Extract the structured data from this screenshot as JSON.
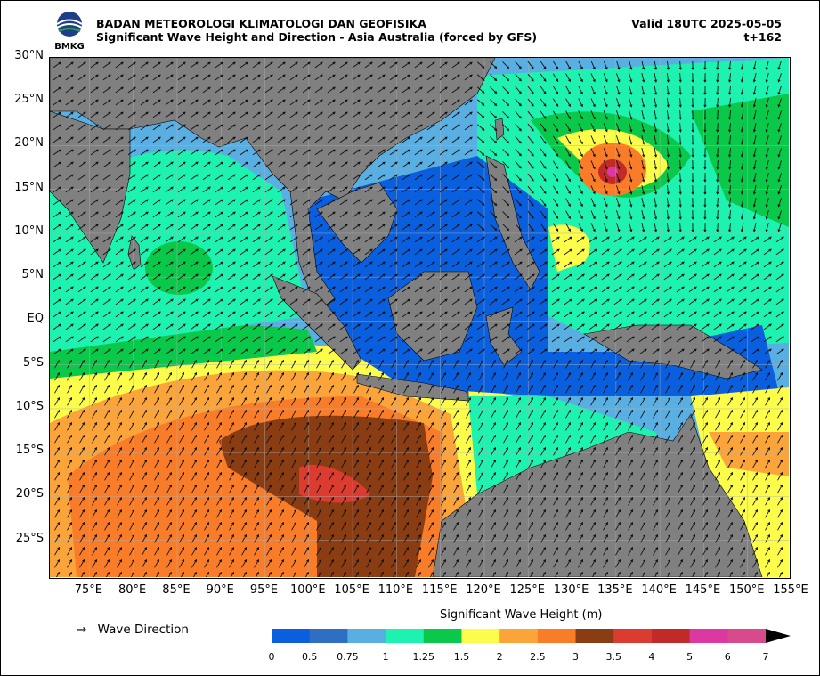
{
  "header": {
    "agency": "BADAN METEOROLOGI KLIMATOLOGI DAN GEOFISIKA",
    "product": "Significant Wave Height and Direction - Asia Australia (forced by GFS)",
    "valid": "Valid 18UTC 2025-05-05",
    "lead": "t+162",
    "logo_text": "BMKG"
  },
  "map": {
    "lat_labels": [
      "30°N",
      "25°N",
      "20°N",
      "15°N",
      "10°N",
      "5°N",
      "EQ",
      "5°S",
      "10°S",
      "15°S",
      "20°S",
      "25°S"
    ],
    "lon_labels": [
      "75°E",
      "80°E",
      "85°E",
      "90°E",
      "95°E",
      "100°E",
      "105°E",
      "110°E",
      "115°E",
      "120°E",
      "125°E",
      "130°E",
      "135°E",
      "140°E",
      "145°E",
      "150°E",
      "155°E"
    ],
    "land_color": "#808080",
    "arrow_color": "#111111"
  },
  "colorbar": {
    "title": "Significant Wave Height (m)",
    "ticks": [
      "0",
      "0.5",
      "0.75",
      "1",
      "1.25",
      "1.5",
      "2",
      "2.5",
      "3",
      "3.5",
      "4",
      "5",
      "6",
      "7"
    ],
    "colors": [
      "#0a5fde",
      "#2e6fc4",
      "#5aafe2",
      "#1ef2b0",
      "#0ac84a",
      "#fcfc4a",
      "#fba43a",
      "#f97d28",
      "#8a3c12",
      "#dc3c30",
      "#c22a2a",
      "#dc38a2",
      "#d84a8c"
    ]
  },
  "legend": {
    "symbol": "→",
    "label": "Wave Direction"
  }
}
